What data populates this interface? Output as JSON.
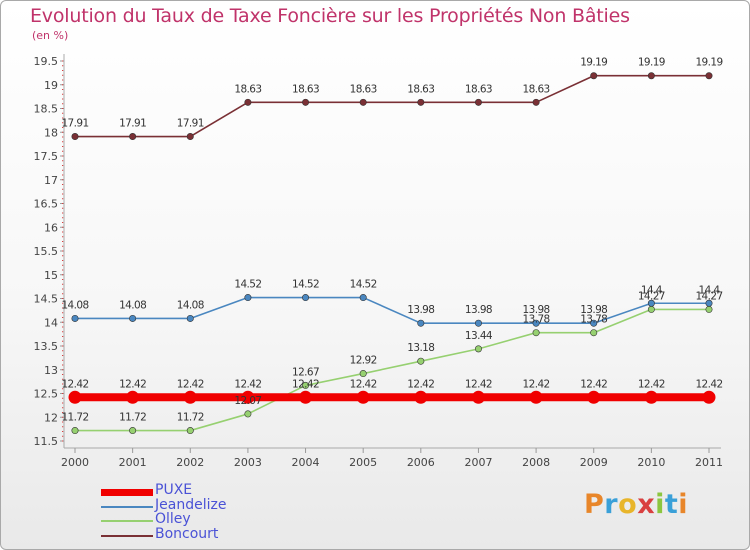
{
  "header": {
    "title": "Evolution du Taux de Taxe Foncière sur les Propriétés Non Bâties",
    "unit": "(en %)"
  },
  "logo": {
    "letters": [
      "P",
      "r",
      "o",
      "x",
      "i",
      "t",
      "i"
    ]
  },
  "chart_data": {
    "type": "line",
    "title": "Evolution du Taux de Taxe Foncière sur les Propriétés Non Bâties",
    "ylabel": "(en %)",
    "xlabel": "",
    "ylim": [
      11.5,
      19.5
    ],
    "y_ticks": [
      "11.5",
      "12",
      "12.5",
      "13",
      "13.5",
      "14",
      "14.5",
      "15",
      "15.5",
      "16",
      "16.5",
      "17",
      "17.5",
      "18",
      "18.5",
      "19",
      "19.5"
    ],
    "categories": [
      "2000",
      "2001",
      "2002",
      "2003",
      "2004",
      "2005",
      "2006",
      "2007",
      "2008",
      "2009",
      "2010",
      "2011"
    ],
    "series": [
      {
        "name": "Boncourt",
        "color": "#7a3035",
        "values": [
          17.91,
          17.91,
          17.91,
          18.63,
          18.63,
          18.63,
          18.63,
          18.63,
          18.63,
          19.19,
          19.19,
          19.19
        ],
        "labels": [
          "17.91",
          "17.91",
          "17.91",
          "18.63",
          "18.63",
          "18.63",
          "18.63",
          "18.63",
          "18.63",
          "19.19",
          "19.19",
          "19.19"
        ]
      },
      {
        "name": "Jeandelize",
        "color": "#4a87c0",
        "values": [
          14.08,
          14.08,
          14.08,
          14.52,
          14.52,
          14.52,
          13.98,
          13.98,
          13.98,
          13.98,
          14.4,
          14.4
        ],
        "labels": [
          "14.08",
          "14.08",
          "14.08",
          "14.52",
          "14.52",
          "14.52",
          "13.98",
          "13.98",
          "13.98",
          "13.98",
          "14.4",
          "14.4"
        ]
      },
      {
        "name": "Olley",
        "color": "#96d070",
        "values": [
          11.72,
          11.72,
          11.72,
          12.07,
          12.67,
          12.92,
          13.18,
          13.44,
          13.78,
          13.78,
          14.27,
          14.27
        ],
        "labels": [
          "11.72",
          "11.72",
          "11.72",
          "12.07",
          "12.67",
          "12.92",
          "13.18",
          "13.44",
          "13.78",
          "13.78",
          "14.27",
          "14.27"
        ]
      },
      {
        "name": "PUXE",
        "color": "#f00000",
        "values": [
          12.42,
          12.42,
          12.42,
          12.42,
          12.42,
          12.42,
          12.42,
          12.42,
          12.42,
          12.42,
          12.42,
          12.42
        ],
        "labels": [
          "12.42",
          "12.42",
          "12.42",
          "12.42",
          "12.42",
          "12.42",
          "12.42",
          "12.42",
          "12.42",
          "12.42",
          "12.42",
          "12.42"
        ]
      }
    ],
    "legend": [
      {
        "name": "PUXE",
        "color": "#f00000"
      },
      {
        "name": "Jeandelize",
        "color": "#4a87c0"
      },
      {
        "name": "Olley",
        "color": "#96d070"
      },
      {
        "name": "Boncourt",
        "color": "#7a3035"
      }
    ],
    "legend_position": "bottom-left",
    "grid": false
  }
}
